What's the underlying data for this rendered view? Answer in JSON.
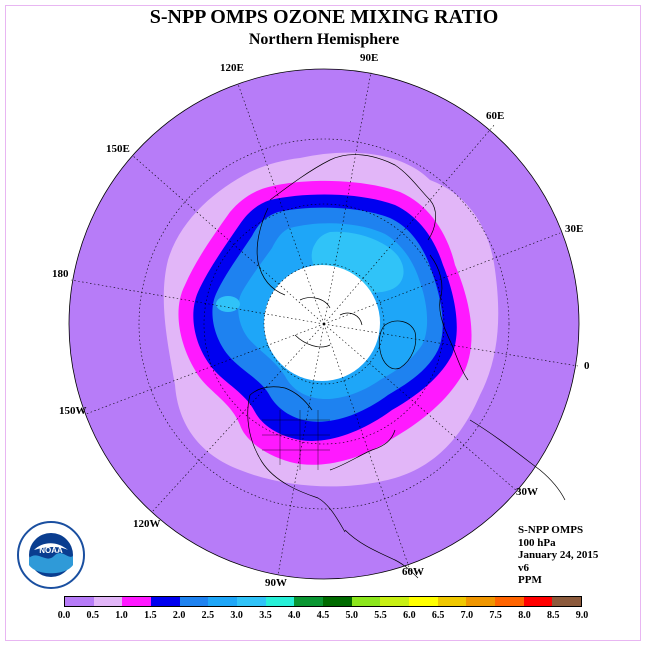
{
  "header": {
    "title": "S-NPP OMPS OZONE MIXING RATIO",
    "subtitle": "Northern Hemisphere"
  },
  "longitude_labels": {
    "e90": "90E",
    "e60": "60E",
    "e30": "30E",
    "zero": "0",
    "w30": "30W",
    "w60": "60W",
    "w90": "90W",
    "w120": "120W",
    "w150": "150W",
    "d180": "180",
    "e150": "150E",
    "e120": "120E"
  },
  "info": {
    "instrument": "S-NPP OMPS",
    "level": "100 hPa",
    "date": "January 24, 2015",
    "version": "v6",
    "units": "PPM"
  },
  "legend": {
    "colors": [
      "#b77cf8",
      "#e2b6f8",
      "#ff19ff",
      "#0000f0",
      "#1e82f0",
      "#1ea6f8",
      "#30c3f8",
      "#28f0d8",
      "#0a9632",
      "#006a00",
      "#8ce61c",
      "#c8f014",
      "#ffff00",
      "#f0c800",
      "#f09600",
      "#ff6400",
      "#ff0000",
      "#8c5a3c"
    ],
    "labels": [
      "0.0",
      "0.5",
      "1.0",
      "1.5",
      "2.0",
      "2.5",
      "3.0",
      "3.5",
      "4.0",
      "4.5",
      "5.0",
      "5.5",
      "6.0",
      "6.5",
      "7.0",
      "7.5",
      "8.0",
      "8.5",
      "9.0"
    ]
  },
  "colors": {
    "background_disc": "#b77cf8",
    "no_data_pole": "#ffffff"
  }
}
